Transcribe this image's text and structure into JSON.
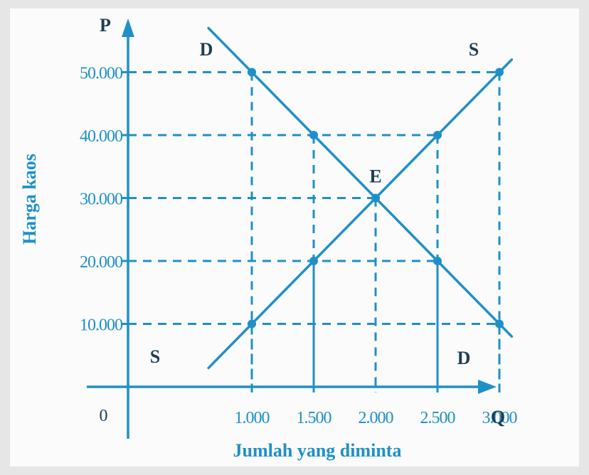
{
  "colors": {
    "accent": "#1e90c8",
    "background": "#fbfbfb",
    "text": "#1e3f55"
  },
  "chart_data": {
    "type": "line",
    "title": "",
    "xlabel": "Jumlah yang diminta",
    "ylabel": "Harga kaos",
    "x_axis_letter": "Q",
    "y_axis_letter": "P",
    "origin_label": "0",
    "x_ticks": [
      1000,
      1500,
      2000,
      2500,
      3000
    ],
    "x_tick_labels": [
      "1.000",
      "1.500",
      "2.000",
      "2.500",
      "3.000"
    ],
    "y_ticks": [
      10000,
      20000,
      30000,
      40000,
      50000
    ],
    "y_tick_labels": [
      "10.000",
      "20.000",
      "30.000",
      "40.000",
      "50.000"
    ],
    "xlim": [
      0,
      3300
    ],
    "ylim": [
      0,
      55000
    ],
    "grid": "dashed guide lines to each point",
    "series": [
      {
        "name": "D",
        "points": [
          [
            1000,
            50000
          ],
          [
            1500,
            40000
          ],
          [
            2000,
            30000
          ],
          [
            2500,
            20000
          ],
          [
            3000,
            10000
          ]
        ],
        "line_start": [
          650,
          57000
        ],
        "line_end": [
          3100,
          8000
        ],
        "label_start": "D",
        "label_end": "D"
      },
      {
        "name": "S",
        "points": [
          [
            1000,
            10000
          ],
          [
            1500,
            20000
          ],
          [
            2000,
            30000
          ],
          [
            2500,
            40000
          ],
          [
            3000,
            50000
          ]
        ],
        "line_start": [
          650,
          3000
        ],
        "line_end": [
          3100,
          52000
        ],
        "label_start": "S",
        "label_end": "S"
      }
    ],
    "annotations": [
      {
        "text": "E",
        "x": 2000,
        "y": 30000
      }
    ]
  }
}
